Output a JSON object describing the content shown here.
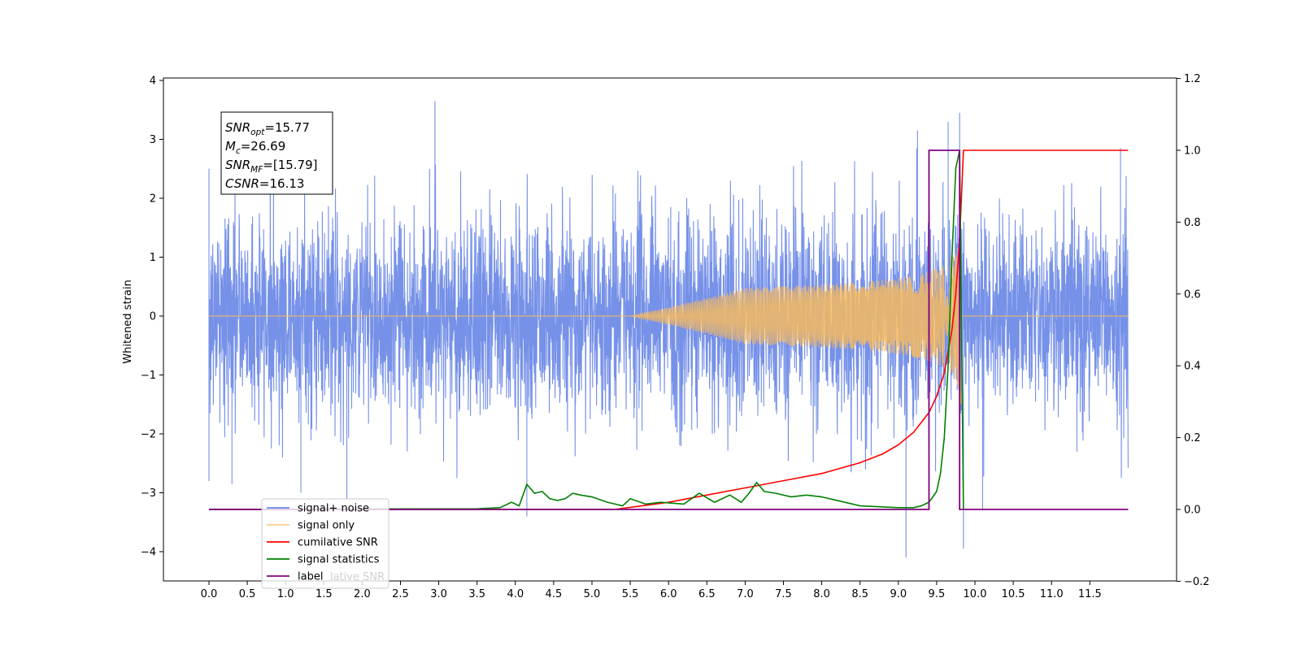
{
  "chart_data": {
    "type": "line",
    "ylabel": "Whitened strain",
    "x_ticks": [
      "0.0",
      "0.5",
      "1.0",
      "1.5",
      "2.0",
      "2.5",
      "3.0",
      "3.5",
      "4.0",
      "4.5",
      "5.0",
      "5.5",
      "6.0",
      "6.5",
      "7.0",
      "7.5",
      "8.0",
      "8.5",
      "9.0",
      "9.5",
      "10.0",
      "10.5",
      "11.0",
      "11.5"
    ],
    "x_range": [
      -0.3,
      12.3
    ],
    "y_left_range": [
      -4.5,
      4.05
    ],
    "y_left_ticks": [
      "−4",
      "−3",
      "−2",
      "−1",
      "0",
      "1",
      "2",
      "3",
      "4"
    ],
    "y_right_range": [
      -0.2,
      1.2
    ],
    "y_right_ticks": [
      "−0.2",
      "0.0",
      "0.2",
      "0.4",
      "0.6",
      "0.8",
      "1.0",
      "1.2"
    ],
    "grid": false,
    "legend_location": "lower-left",
    "colors": {
      "signal_noise": "#6a88e6",
      "signal_only": "#f5b860",
      "cumulative_snr": "#ff0000",
      "signal_statistics": "#008000",
      "label": "#800080"
    },
    "legend": [
      {
        "key": "signal_noise",
        "label": "signal+ noise"
      },
      {
        "key": "signal_only",
        "label": "signal only"
      },
      {
        "key": "cumulative_snr",
        "label": "cumilative SNR"
      },
      {
        "key": "signal_statistics",
        "label": "signal statistics"
      },
      {
        "key": "label",
        "label": "label"
      }
    ],
    "legend_occluded_text": "lative SNR",
    "annotation": {
      "lines": [
        {
          "sym": "SNR",
          "sub": "opt",
          "value": "=15.77"
        },
        {
          "sym": "M",
          "sub": "c",
          "value": "=26.69"
        },
        {
          "sym": "SNR",
          "sub": "MF",
          "value": "=[15.79]"
        },
        {
          "sym": "CSNR",
          "sub": "",
          "value": "=16.13"
        }
      ]
    },
    "series": [
      {
        "name": "signal+ noise",
        "axis": "left",
        "x_range": [
          0.0,
          12.0
        ],
        "description_noise_std": 0.85,
        "peaks": [
          {
            "x": 0.0,
            "y": 2.5
          },
          {
            "x": 0.0,
            "y": -2.8
          },
          {
            "x": 0.3,
            "y": -2.85
          },
          {
            "x": 1.2,
            "y": -3.0
          },
          {
            "x": 1.8,
            "y": -3.1
          },
          {
            "x": 2.95,
            "y": 3.65
          },
          {
            "x": 4.15,
            "y": -3.4
          },
          {
            "x": 9.1,
            "y": -4.1
          },
          {
            "x": 9.25,
            "y": 3.15
          },
          {
            "x": 9.65,
            "y": 3.3
          },
          {
            "x": 9.8,
            "y": 3.45
          },
          {
            "x": 9.85,
            "y": -3.95
          },
          {
            "x": 10.1,
            "y": -3.3
          },
          {
            "x": 11.9,
            "y": 2.85
          }
        ]
      },
      {
        "name": "signal only",
        "axis": "left",
        "x_range": [
          0.0,
          12.0
        ],
        "chirp_start": 5.5,
        "merger": 9.83,
        "peak_amplitude": 1.4
      },
      {
        "name": "cumilative SNR",
        "axis": "right",
        "x": [
          5.3,
          6.0,
          6.5,
          7.0,
          7.5,
          8.0,
          8.5,
          8.8,
          9.0,
          9.2,
          9.4,
          9.5,
          9.6,
          9.7,
          9.75,
          9.8,
          9.82,
          9.85,
          9.9,
          12.0
        ],
        "y": [
          0.0,
          0.02,
          0.04,
          0.06,
          0.08,
          0.1,
          0.13,
          0.155,
          0.18,
          0.215,
          0.27,
          0.315,
          0.38,
          0.5,
          0.6,
          0.75,
          0.85,
          1.0,
          1.0,
          1.0
        ]
      },
      {
        "name": "signal statistics",
        "axis": "right",
        "x": [
          0.0,
          3.5,
          3.8,
          3.95,
          4.05,
          4.15,
          4.25,
          4.35,
          4.45,
          4.55,
          4.65,
          4.75,
          4.85,
          5.0,
          5.2,
          5.4,
          5.5,
          5.7,
          5.9,
          6.2,
          6.4,
          6.6,
          6.8,
          6.95,
          7.05,
          7.15,
          7.25,
          7.4,
          7.6,
          7.8,
          8.0,
          8.2,
          8.5,
          9.0,
          9.2,
          9.3,
          9.4,
          9.5,
          9.55,
          9.6,
          9.65,
          9.7,
          9.75,
          9.8,
          9.85
        ],
        "y": [
          0.0,
          0.002,
          0.005,
          0.02,
          0.01,
          0.07,
          0.045,
          0.05,
          0.03,
          0.025,
          0.03,
          0.045,
          0.04,
          0.035,
          0.02,
          0.01,
          0.03,
          0.015,
          0.02,
          0.015,
          0.045,
          0.02,
          0.04,
          0.02,
          0.045,
          0.075,
          0.05,
          0.045,
          0.035,
          0.04,
          0.035,
          0.025,
          0.01,
          0.005,
          0.005,
          0.01,
          0.02,
          0.05,
          0.1,
          0.2,
          0.4,
          0.7,
          0.95,
          1.0,
          0.0
        ]
      },
      {
        "name": "label",
        "axis": "right",
        "x": [
          0.0,
          9.4,
          9.4,
          9.5,
          9.5,
          9.8,
          9.8,
          12.0
        ],
        "y": [
          0.0,
          0.0,
          1.0,
          1.0,
          1.0,
          1.0,
          0.0,
          0.0
        ]
      }
    ]
  }
}
